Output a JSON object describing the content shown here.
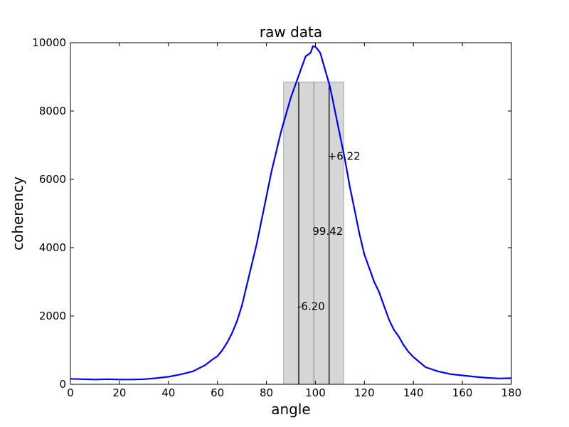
{
  "chart_data": {
    "type": "line",
    "title": "raw data",
    "xlabel": "angle",
    "ylabel": "coherency",
    "xlim": [
      0,
      180
    ],
    "ylim": [
      0,
      10000
    ],
    "xticks": [
      0,
      20,
      40,
      60,
      80,
      100,
      120,
      140,
      160,
      180
    ],
    "xtick_labels": [
      "0",
      "20",
      "40",
      "60",
      "80",
      "100",
      "120",
      "140",
      "160",
      "180"
    ],
    "yticks": [
      0,
      2000,
      4000,
      6000,
      8000,
      10000
    ],
    "ytick_labels": [
      "0",
      "2000",
      "4000",
      "6000",
      "8000",
      "10000"
    ],
    "grid": false,
    "line_color": "#0000ff",
    "series": [
      {
        "x": [
          0,
          5,
          10,
          15,
          20,
          25,
          30,
          35,
          40,
          45,
          50,
          55,
          58,
          60,
          62,
          64,
          66,
          68,
          70,
          72,
          74,
          76,
          78,
          80,
          82,
          84,
          86,
          88,
          90,
          92,
          94,
          96,
          98,
          99,
          100,
          101,
          102,
          104,
          106,
          108,
          110,
          112,
          114,
          116,
          118,
          120,
          122,
          124,
          126,
          128,
          130,
          132,
          134,
          136,
          138,
          140,
          142,
          145,
          150,
          155,
          160,
          165,
          170,
          175,
          180
        ],
        "y": [
          160,
          150,
          140,
          150,
          140,
          140,
          150,
          180,
          220,
          290,
          380,
          560,
          730,
          820,
          1000,
          1220,
          1500,
          1850,
          2300,
          2900,
          3500,
          4100,
          4800,
          5500,
          6200,
          6800,
          7400,
          7900,
          8400,
          8800,
          9200,
          9600,
          9700,
          9900,
          9880,
          9800,
          9700,
          9200,
          8700,
          8000,
          7300,
          6600,
          5800,
          5100,
          4400,
          3800,
          3400,
          3000,
          2700,
          2300,
          1900,
          1600,
          1400,
          1150,
          950,
          800,
          680,
          500,
          380,
          300,
          260,
          220,
          190,
          170,
          180
        ]
      }
    ],
    "bands": [
      {
        "x0": 87,
        "x1": 99.4,
        "top": 8850,
        "fill": "#cccccc"
      },
      {
        "x0": 99.4,
        "x1": 111.6,
        "top": 8850,
        "fill": "#cccccc"
      }
    ],
    "vlines": [
      {
        "x": 93.2,
        "color": "#000000"
      },
      {
        "x": 99.4,
        "color": "#999999"
      },
      {
        "x": 105.6,
        "color": "#000000"
      }
    ],
    "annotations": [
      {
        "text": "-6.20",
        "x": 93.2,
        "y": 2300
      },
      {
        "text": "99.42",
        "x": 99.4,
        "y": 4500
      },
      {
        "text": "+6.22",
        "x": 105.6,
        "y": 6700
      }
    ]
  }
}
